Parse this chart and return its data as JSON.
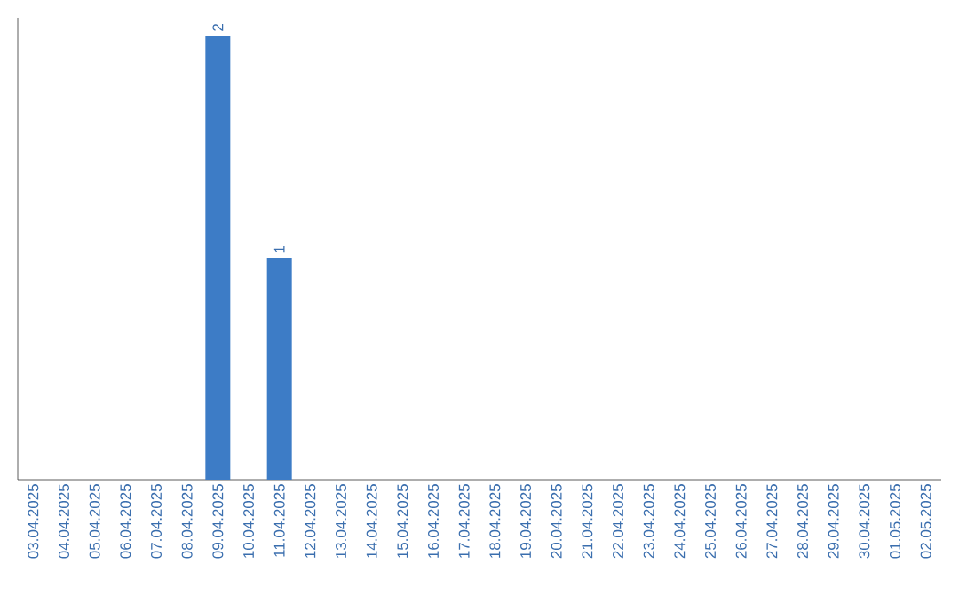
{
  "chart_data": {
    "type": "bar",
    "categories": [
      "03.04.2025",
      "04.04.2025",
      "05.04.2025",
      "06.04.2025",
      "07.04.2025",
      "08.04.2025",
      "09.04.2025",
      "10.04.2025",
      "11.04.2025",
      "12.04.2025",
      "13.04.2025",
      "14.04.2025",
      "15.04.2025",
      "16.04.2025",
      "17.04.2025",
      "18.04.2025",
      "19.04.2025",
      "20.04.2025",
      "21.04.2025",
      "22.04.2025",
      "23.04.2025",
      "24.04.2025",
      "25.04.2025",
      "26.04.2025",
      "27.04.2025",
      "28.04.2025",
      "29.04.2025",
      "30.04.2025",
      "01.05.2025",
      "02.05.2025"
    ],
    "values": [
      0,
      0,
      0,
      0,
      0,
      0,
      2,
      0,
      1,
      0,
      0,
      0,
      0,
      0,
      0,
      0,
      0,
      0,
      0,
      0,
      0,
      0,
      0,
      0,
      0,
      0,
      0,
      0,
      0,
      0
    ],
    "value_labels": [
      null,
      null,
      null,
      null,
      null,
      null,
      "2",
      null,
      "1",
      null,
      null,
      null,
      null,
      null,
      null,
      null,
      null,
      null,
      null,
      null,
      null,
      null,
      null,
      null,
      null,
      null,
      null,
      null,
      null,
      null
    ],
    "color": "#3d7cc6",
    "ylim": [
      0,
      2.08
    ],
    "tick_labels": "x"
  }
}
